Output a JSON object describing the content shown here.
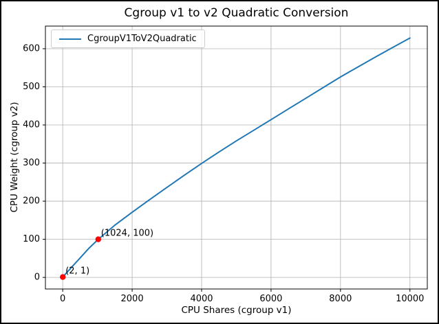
{
  "figure": {
    "background": "#ffffff",
    "border_color": "#000000"
  },
  "chart_data": {
    "type": "line",
    "title": "Cgroup v1 to v2 Quadratic Conversion",
    "xlabel": "CPU Shares (cgroup v1)",
    "ylabel": "CPU Weight (cgroup v2)",
    "xlim": [
      -498,
      10500
    ],
    "ylim": [
      -30.4,
      659.4
    ],
    "xticks": [
      0,
      2000,
      4000,
      6000,
      8000,
      10000
    ],
    "yticks": [
      0,
      100,
      200,
      300,
      400,
      500,
      600
    ],
    "grid": true,
    "grid_color": "#b0b0b0",
    "axes_edge_color": "#000000",
    "legend": {
      "position": "upper left",
      "entries": [
        "CgroupV1ToV2Quadratic"
      ]
    },
    "series": [
      {
        "name": "CgroupV1ToV2Quadratic",
        "color": "#1f77b4",
        "x": [
          2,
          250,
          500,
          750,
          1024,
          1500,
          2000,
          2500,
          3000,
          3500,
          4000,
          4500,
          5000,
          5500,
          6000,
          6500,
          7000,
          7500,
          8000,
          8500,
          9000,
          9500,
          10000
        ],
        "y": [
          1,
          26,
          51,
          76,
          100,
          137,
          171,
          204,
          236,
          268,
          299,
          329,
          358,
          386,
          414,
          442,
          470,
          498,
          526,
          552,
          578,
          603,
          628
        ]
      }
    ],
    "annotations": [
      {
        "label": "(2, 1)",
        "x": 2,
        "y": 1,
        "marker_color": "#ff0000"
      },
      {
        "label": "(1024, 100)",
        "x": 1024,
        "y": 100,
        "marker_color": "#ff0000"
      }
    ]
  }
}
